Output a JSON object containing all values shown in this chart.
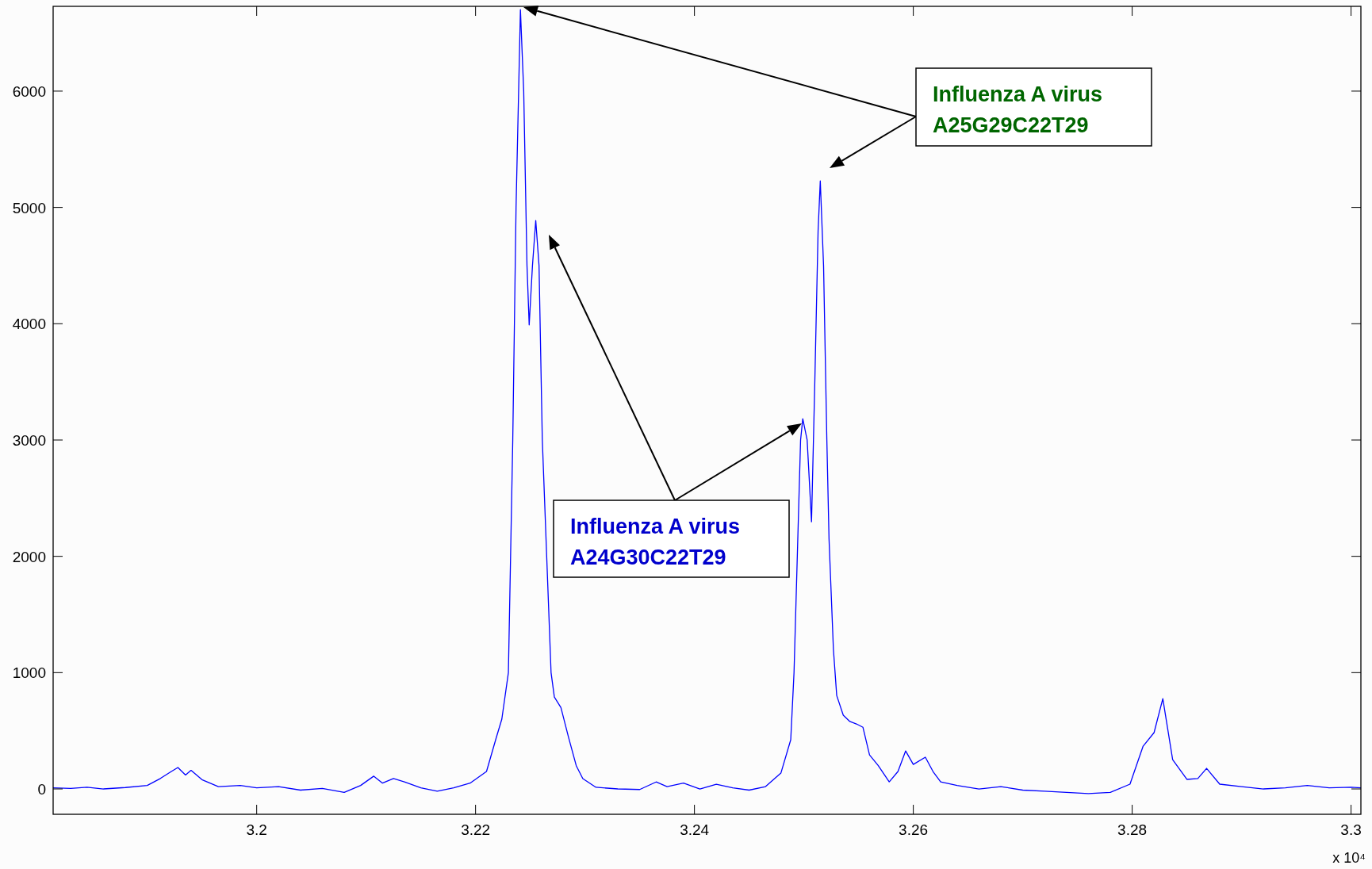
{
  "chart_data": {
    "type": "line",
    "x": [
      3.1814,
      3.183,
      3.1845,
      3.186,
      3.188,
      3.19,
      3.1912,
      3.1922,
      3.1928,
      3.1935,
      3.194,
      3.195,
      3.1965,
      3.1985,
      3.2,
      3.202,
      3.204,
      3.206,
      3.208,
      3.2095,
      3.2107,
      3.2115,
      3.2125,
      3.2135,
      3.215,
      3.2165,
      3.218,
      3.2195,
      3.221,
      3.2219,
      3.2224,
      3.223,
      3.2232,
      3.2234,
      3.2237,
      3.2241,
      3.2244,
      3.2247,
      3.2249,
      3.2252,
      3.2255,
      3.2258,
      3.2261,
      3.2265,
      3.2269,
      3.2272,
      3.2278,
      3.2285,
      3.2292,
      3.2298,
      3.231,
      3.233,
      3.235,
      3.2365,
      3.2375,
      3.239,
      3.2405,
      3.242,
      3.2435,
      3.245,
      3.2465,
      3.2479,
      3.2488,
      3.2491,
      3.2494,
      3.2497,
      3.2499,
      3.2503,
      3.2507,
      3.251,
      3.2513,
      3.2515,
      3.2518,
      3.2521,
      3.2523,
      3.2527,
      3.253,
      3.2536,
      3.2542,
      3.2548,
      3.2554,
      3.256,
      3.2568,
      3.2578,
      3.2586,
      3.2593,
      3.26,
      3.2611,
      3.2618,
      3.2625,
      3.264,
      3.266,
      3.268,
      3.27,
      3.272,
      3.274,
      3.276,
      3.278,
      3.2798,
      3.281,
      3.282,
      3.2828,
      3.2837,
      3.285,
      3.286,
      3.2868,
      3.288,
      3.29,
      3.292,
      3.294,
      3.296,
      3.298,
      3.3,
      3.3009
    ],
    "series": [
      {
        "color": "#0000ff",
        "values": [
          10,
          5,
          15,
          0,
          12,
          30,
          90,
          150,
          184,
          120,
          160,
          80,
          20,
          30,
          10,
          20,
          -10,
          5,
          -30,
          30,
          110,
          50,
          90,
          60,
          10,
          -20,
          10,
          50,
          150,
          443,
          600,
          1000,
          2000,
          3000,
          5000,
          6700,
          6000,
          4500,
          3990,
          4500,
          4888,
          4500,
          3000,
          2000,
          1000,
          790,
          700,
          443,
          200,
          89,
          14,
          0,
          -5,
          60,
          20,
          50,
          0,
          40,
          10,
          -10,
          20,
          136,
          423,
          1000,
          2000,
          3000,
          3183,
          3000,
          2297,
          3500,
          4800,
          5228,
          4500,
          3000,
          2147,
          1200,
          804,
          634,
          580,
          559,
          530,
          293,
          200,
          61,
          150,
          327,
          211,
          273,
          150,
          61,
          30,
          0,
          20,
          -10,
          -20,
          -30,
          -40,
          -30,
          41,
          368,
          484,
          777,
          252,
          82,
          90,
          177,
          41,
          20,
          0,
          10,
          30,
          10,
          15,
          10
        ]
      }
    ],
    "xlim": [
      3.1814,
      3.3009
    ],
    "xticks": [
      3.2,
      3.22,
      3.24,
      3.26,
      3.28,
      3.3
    ],
    "ylim": [
      -218,
      6729
    ],
    "yticks": [
      0,
      1000,
      2000,
      3000,
      4000,
      5000,
      6000
    ],
    "grid": false,
    "annotations": [
      "Influenza A virus\nA25G29C22T29",
      "Influenza A virus\nA24G30C22T29",
      "x 10⁴"
    ]
  }
}
